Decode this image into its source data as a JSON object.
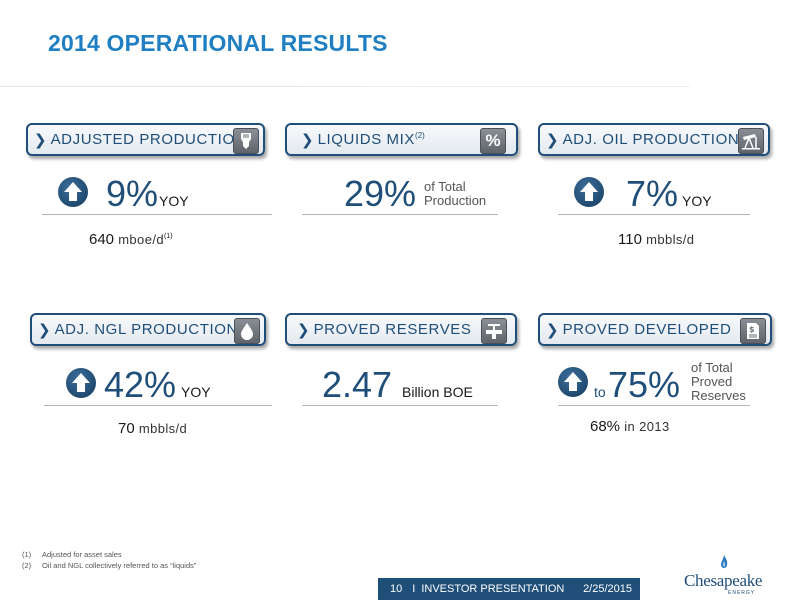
{
  "title": "2014 OPERATIONAL RESULTS",
  "cards": {
    "adjusted_production": {
      "label": "ADJUSTED PRODUCTION",
      "icon": "drill-bit-icon",
      "value": "9%",
      "unit": "YOY",
      "sub_value": "640",
      "sub_unit": "mboe/d",
      "sub_ref": "(1)"
    },
    "liquids_mix": {
      "label": "LIQUIDS MIX",
      "label_ref": "(2)",
      "icon": "percent-icon",
      "icon_glyph": "%",
      "value": "29%",
      "note_line1": "of Total",
      "note_line2": "Production"
    },
    "adj_oil_production": {
      "label": "ADJ. OIL PRODUCTION",
      "icon": "pumpjack-icon",
      "value": "7%",
      "unit": "YOY",
      "sub_value": "110",
      "sub_unit": "mbbls/d"
    },
    "adj_ngl_production": {
      "label": "ADJ. NGL PRODUCTION",
      "icon": "droplet-icon",
      "value": "42%",
      "unit": "YOY",
      "sub_value": "70",
      "sub_unit": "mbbls/d"
    },
    "proved_reserves": {
      "label": "PROVED RESERVES",
      "icon": "valve-icon",
      "value": "2.47",
      "unit": "Billion BOE"
    },
    "proved_developed": {
      "label": "PROVED DEVELOPED",
      "icon": "document-dollar-icon",
      "prefix": "to",
      "value": "75%",
      "note_line1": "of Total",
      "note_line2": "Proved",
      "note_line3": "Reserves",
      "sub_value": "68%",
      "sub_unit": "in 2013"
    }
  },
  "footnotes": [
    {
      "num": "(1)",
      "text": "Adjusted for asset sales"
    },
    {
      "num": "(2)",
      "text": "Oil and NGL collectively referred to as “liquids”"
    }
  ],
  "footer": {
    "page": "10",
    "separator": "I",
    "label": "INVESTOR PRESENTATION",
    "date": "2/25/2015"
  },
  "logo": {
    "name": "Chesapeake",
    "tagline": "ENERGY"
  },
  "colors": {
    "title": "#1f7fc2",
    "navy": "#1f4e79",
    "icon_gray": "#6b7077"
  }
}
